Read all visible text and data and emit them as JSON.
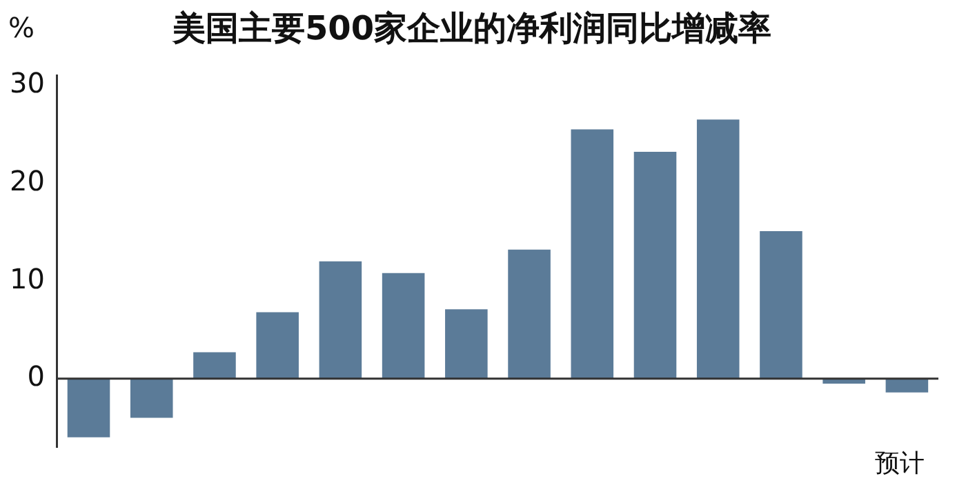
{
  "chart_data": {
    "type": "bar",
    "title": "美国主要500家企业的净利润同比增减率",
    "ylabel": "%",
    "categories": [
      null,
      null,
      null,
      null,
      null,
      null,
      null,
      null,
      null,
      null,
      null,
      null,
      null,
      null
    ],
    "values": [
      -6.0,
      -4.0,
      2.7,
      6.8,
      12.0,
      10.8,
      7.1,
      13.2,
      25.5,
      23.2,
      26.5,
      15.1,
      -0.5,
      -1.4
    ],
    "color": "#5b7b98",
    "ylim": [
      -7,
      31
    ],
    "yticks": [
      0,
      10,
      20,
      30
    ],
    "grid": false,
    "legend": false,
    "tick_labels": "y",
    "ref_lines": [
      {
        "axis": "y",
        "value": 0,
        "color": "#333333"
      }
    ],
    "annotations": [
      "预计"
    ]
  }
}
